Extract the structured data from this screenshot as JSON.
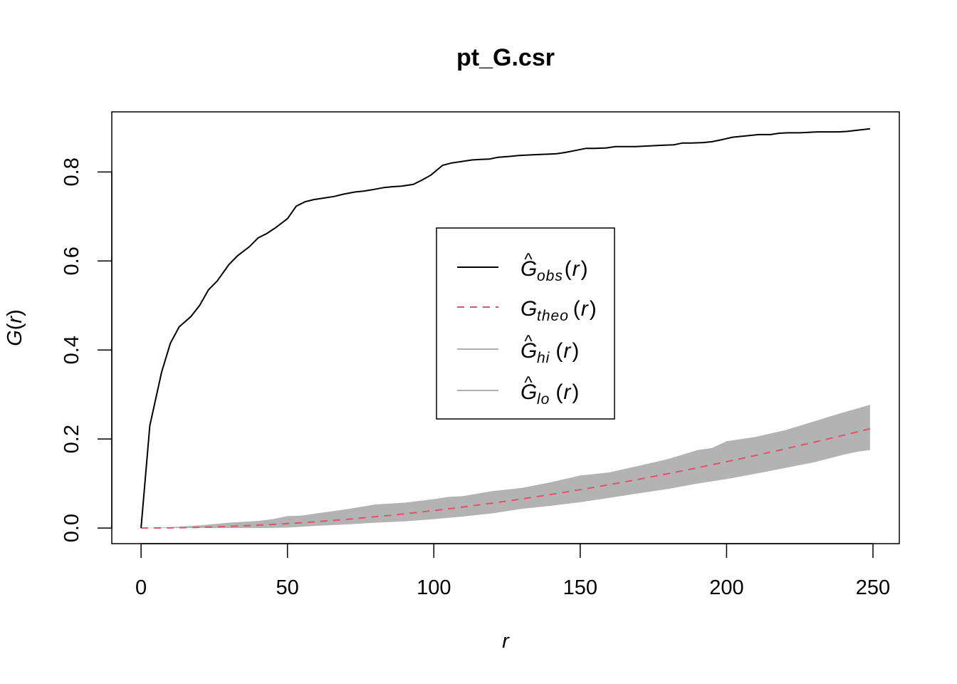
{
  "chart_data": {
    "type": "line",
    "title": "pt_G.csr",
    "xlabel": "r",
    "ylabel": "G(r)",
    "xlim": [
      -10,
      259
    ],
    "ylim": [
      -0.035,
      0.935
    ],
    "x_ticks": [
      0,
      50,
      100,
      150,
      200,
      250
    ],
    "x_tick_labels": [
      "0",
      "50",
      "100",
      "150",
      "200",
      "250"
    ],
    "y_ticks": [
      0.0,
      0.2,
      0.4,
      0.6,
      0.8
    ],
    "y_tick_labels": [
      "0.0",
      "0.2",
      "0.4",
      "0.6",
      "0.8"
    ],
    "legend_position": "center",
    "legend": [
      {
        "base": "G",
        "hat": true,
        "sub": "obs",
        "suffix": "(r)",
        "style": "solid",
        "color": "#000000"
      },
      {
        "base": "G",
        "hat": false,
        "sub": "theo",
        "suffix": "(r)",
        "style": "dashed",
        "color": "#DF536B"
      },
      {
        "base": "G",
        "hat": true,
        "sub": "hi",
        "suffix": "(r)",
        "style": "solid",
        "color": "#B0B0B0"
      },
      {
        "base": "G",
        "hat": true,
        "sub": "lo",
        "suffix": "(r)",
        "style": "solid",
        "color": "#B0B0B0"
      }
    ],
    "envelope_color": "#B3B3B3",
    "series": [
      {
        "name": "obs",
        "color": "#000000",
        "style": "solid",
        "x": [
          0,
          3,
          7,
          10,
          13,
          17,
          20,
          23,
          26,
          30,
          33,
          37,
          40,
          43,
          46,
          50,
          53,
          56,
          59,
          63,
          66,
          69,
          73,
          76,
          79,
          83,
          86,
          89,
          93,
          96,
          99,
          103,
          106,
          109,
          113,
          116,
          119,
          122,
          126,
          129,
          132,
          135,
          139,
          142,
          145,
          149,
          152,
          155,
          159,
          162,
          165,
          169,
          172,
          175,
          178,
          182,
          185,
          188,
          192,
          195,
          198,
          202,
          205,
          208,
          211,
          215,
          218,
          221,
          225,
          228,
          231,
          235,
          238,
          241,
          245,
          249
        ],
        "y": [
          0,
          0.23,
          0.35,
          0.415,
          0.452,
          0.475,
          0.5,
          0.535,
          0.555,
          0.592,
          0.612,
          0.632,
          0.652,
          0.662,
          0.675,
          0.695,
          0.723,
          0.733,
          0.738,
          0.742,
          0.745,
          0.75,
          0.755,
          0.757,
          0.76,
          0.765,
          0.767,
          0.768,
          0.772,
          0.782,
          0.793,
          0.815,
          0.82,
          0.823,
          0.827,
          0.828,
          0.829,
          0.833,
          0.835,
          0.837,
          0.838,
          0.839,
          0.84,
          0.841,
          0.844,
          0.849,
          0.853,
          0.853,
          0.854,
          0.857,
          0.857,
          0.857,
          0.858,
          0.859,
          0.86,
          0.861,
          0.865,
          0.865,
          0.866,
          0.868,
          0.872,
          0.878,
          0.88,
          0.882,
          0.884,
          0.884,
          0.887,
          0.888,
          0.888,
          0.889,
          0.89,
          0.89,
          0.89,
          0.891,
          0.894,
          0.897
        ]
      },
      {
        "name": "theo",
        "color": "#DF536B",
        "style": "dashed",
        "x": [
          0,
          10,
          20,
          30,
          40,
          50,
          60,
          70,
          80,
          90,
          100,
          110,
          120,
          130,
          140,
          150,
          160,
          170,
          180,
          190,
          200,
          210,
          220,
          230,
          240,
          249
        ],
        "y": [
          0,
          0.0004,
          0.0016,
          0.0036,
          0.0064,
          0.01,
          0.0143,
          0.0194,
          0.0253,
          0.0319,
          0.0392,
          0.0472,
          0.056,
          0.0654,
          0.0755,
          0.0862,
          0.0976,
          0.1096,
          0.1222,
          0.1353,
          0.149,
          0.1632,
          0.1779,
          0.1931,
          0.2087,
          0.223
        ]
      },
      {
        "name": "hi",
        "color": "#B3B3B3",
        "style": "band-upper",
        "x": [
          0,
          10,
          20,
          30,
          40,
          45,
          50,
          55,
          60,
          70,
          80,
          90,
          100,
          105,
          110,
          120,
          130,
          140,
          150,
          160,
          170,
          180,
          190,
          195,
          200,
          210,
          220,
          230,
          235,
          240,
          249
        ],
        "y": [
          0,
          0.002,
          0.006,
          0.012,
          0.016,
          0.02,
          0.027,
          0.028,
          0.033,
          0.042,
          0.053,
          0.057,
          0.065,
          0.07,
          0.072,
          0.083,
          0.09,
          0.103,
          0.118,
          0.125,
          0.14,
          0.155,
          0.175,
          0.18,
          0.195,
          0.205,
          0.22,
          0.24,
          0.25,
          0.26,
          0.277
        ]
      },
      {
        "name": "lo",
        "color": "#B3B3B3",
        "style": "band-lower",
        "x": [
          0,
          10,
          20,
          30,
          40,
          50,
          55,
          60,
          70,
          80,
          90,
          100,
          110,
          120,
          130,
          140,
          150,
          160,
          170,
          180,
          190,
          200,
          210,
          220,
          230,
          240,
          245,
          249
        ],
        "y": [
          0,
          0,
          0,
          0,
          0,
          0.001,
          0.003,
          0.005,
          0.008,
          0.012,
          0.015,
          0.02,
          0.026,
          0.033,
          0.043,
          0.05,
          0.058,
          0.068,
          0.078,
          0.088,
          0.1,
          0.11,
          0.122,
          0.135,
          0.148,
          0.165,
          0.172,
          0.175
        ]
      }
    ]
  }
}
